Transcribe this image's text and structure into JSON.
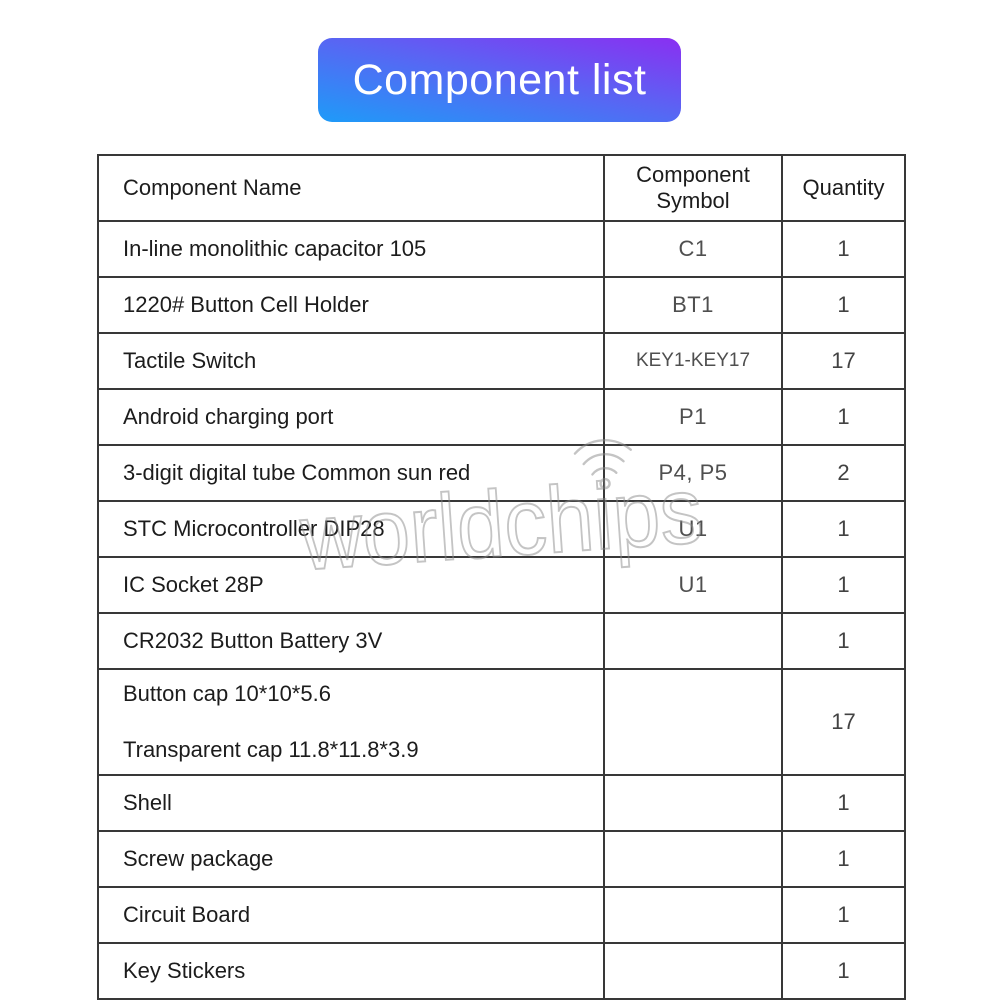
{
  "title": "Component list",
  "colors": {
    "banner_gradient_top": "#8a2ff2",
    "banner_gradient_bottom": "#1e9bf8",
    "table_border": "#383838",
    "watermark_gray": "#8a8a8a"
  },
  "watermark": {
    "text": "worldchips",
    "icon": "wifi-icon"
  },
  "table": {
    "columns": [
      "Component Name",
      "Component Symbol",
      "Quantity"
    ],
    "rows": [
      {
        "name_lines": [
          "In-line monolithic capacitor 105"
        ],
        "symbol": "C1",
        "qty": "1",
        "tall": false
      },
      {
        "name_lines": [
          "1220# Button Cell Holder"
        ],
        "symbol": "BT1",
        "qty": "1",
        "tall": false
      },
      {
        "name_lines": [
          "Tactile Switch"
        ],
        "symbol": "KEY1-KEY17",
        "qty": "17",
        "tall": false
      },
      {
        "name_lines": [
          "Android charging port"
        ],
        "symbol": "P1",
        "qty": "1",
        "tall": false
      },
      {
        "name_lines": [
          "3-digit digital tube Common sun red"
        ],
        "symbol": "P4, P5",
        "qty": "2",
        "tall": false
      },
      {
        "name_lines": [
          "STC Microcontroller DIP28"
        ],
        "symbol": "U1",
        "qty": "1",
        "tall": false
      },
      {
        "name_lines": [
          "IC Socket 28P"
        ],
        "symbol": "U1",
        "qty": "1",
        "tall": false
      },
      {
        "name_lines": [
          "CR2032 Button Battery 3V"
        ],
        "symbol": "",
        "qty": "1",
        "tall": false
      },
      {
        "name_lines": [
          "Button cap 10*10*5.6",
          "Transparent cap 11.8*11.8*3.9"
        ],
        "symbol": "",
        "qty": "17",
        "tall": true
      },
      {
        "name_lines": [
          "Shell"
        ],
        "symbol": "",
        "qty": "1",
        "tall": false
      },
      {
        "name_lines": [
          "Screw package"
        ],
        "symbol": "",
        "qty": "1",
        "tall": false
      },
      {
        "name_lines": [
          "Circuit Board"
        ],
        "symbol": "",
        "qty": "1",
        "tall": false
      },
      {
        "name_lines": [
          "Key Stickers"
        ],
        "symbol": "",
        "qty": "1",
        "tall": false
      }
    ]
  }
}
